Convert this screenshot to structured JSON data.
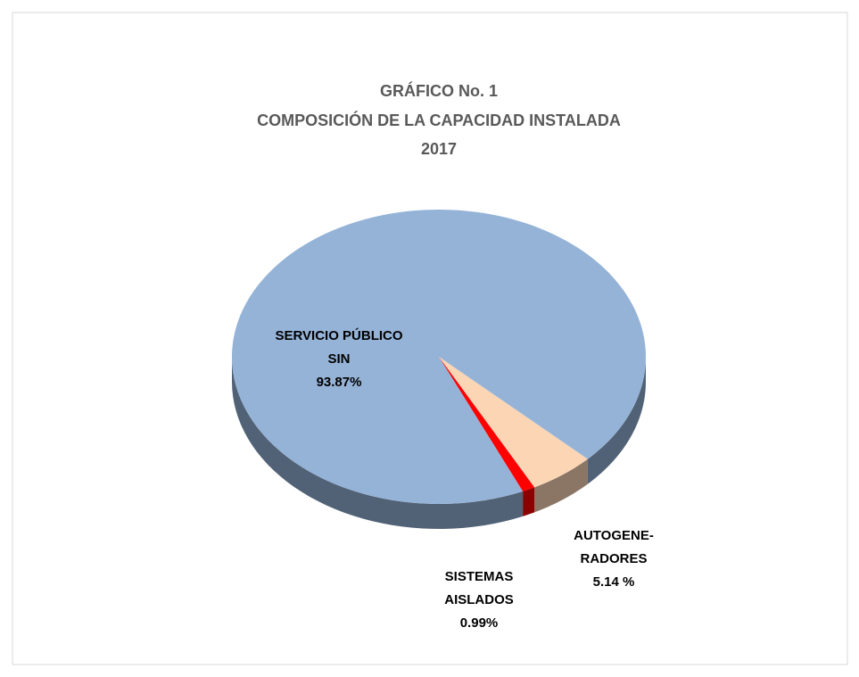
{
  "chart_data": {
    "type": "pie",
    "title": [
      "GRÁFICO No. 1",
      "COMPOSICIÓN  DE  LA  CAPACIDAD  INSTALADA",
      "2017"
    ],
    "categories": [
      [
        "SERVICIO PÚBLICO",
        "SIN"
      ],
      [
        "AUTOGENE-",
        "RADORES"
      ],
      [
        "SISTEMAS",
        "AISLADOS"
      ]
    ],
    "values": [
      93.87,
      5.14,
      0.99
    ],
    "value_labels": [
      "93.87%",
      "5.14 %",
      "0.99%"
    ],
    "colors": [
      "#95b3d7",
      "#fcd5b5",
      "#ff0000"
    ]
  }
}
